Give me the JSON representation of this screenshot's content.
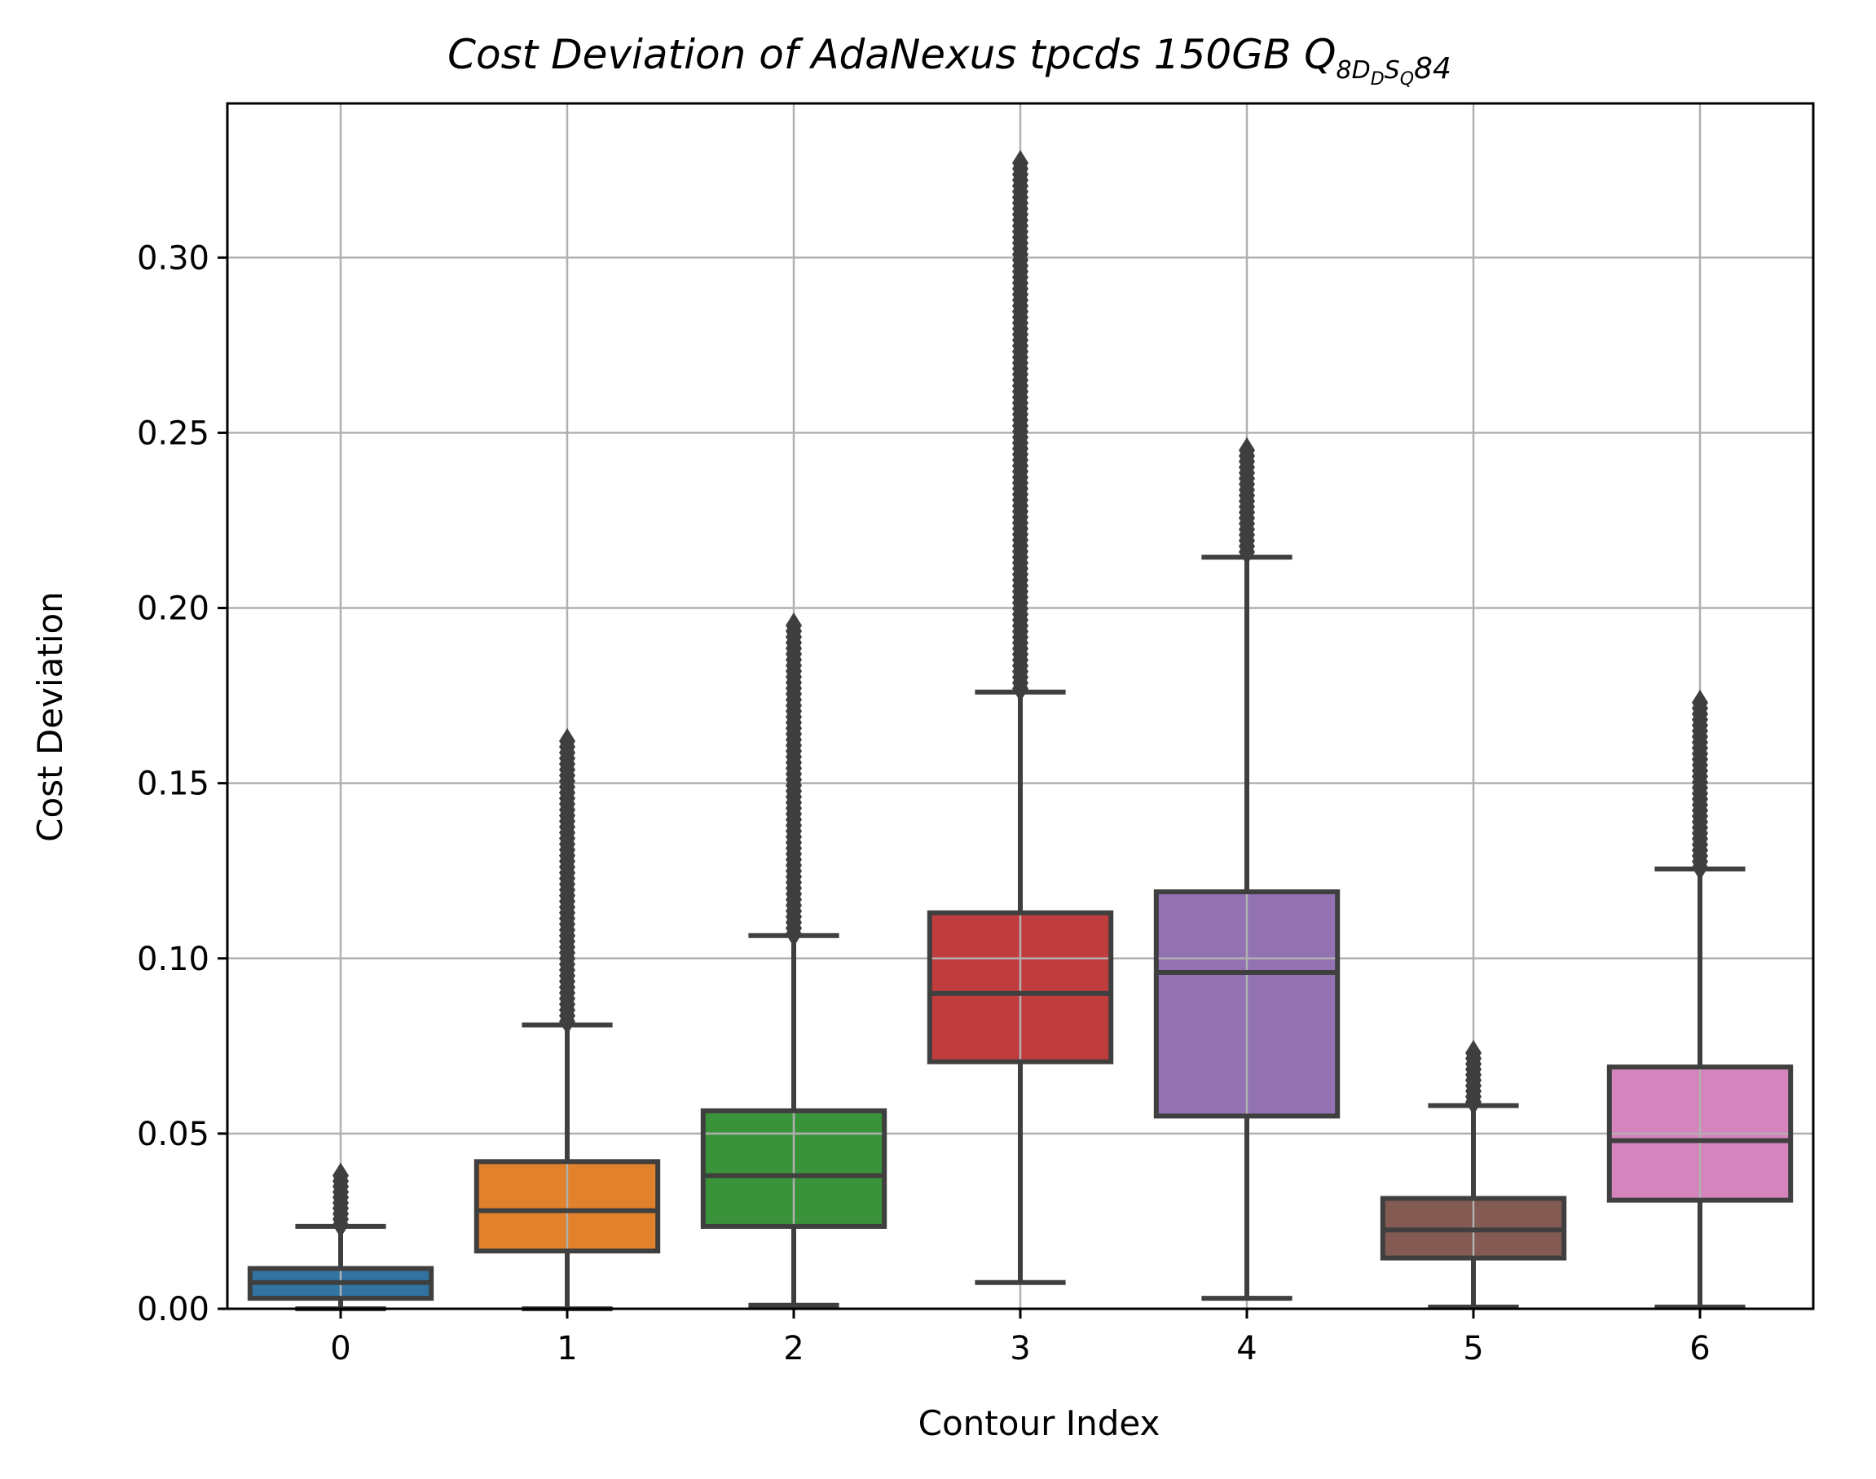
{
  "chart_data": {
    "type": "box",
    "title": "Cost Deviation of AdaNexus tpcds  150GB  Q",
    "title_subscript": "8D",
    "title_subscript_2": "D",
    "title_subscript_3": "S",
    "title_subscript_4": "Q",
    "title_suffix": "84",
    "xlabel": "Contour Index",
    "ylabel": "Cost Deviation",
    "categories": [
      "0",
      "1",
      "2",
      "3",
      "4",
      "5",
      "6"
    ],
    "ylim": [
      0,
      0.344
    ],
    "yticks": [
      0.0,
      0.05,
      0.1,
      0.15,
      0.2,
      0.25,
      0.3
    ],
    "ytick_labels": [
      "0.00",
      "0.05",
      "0.10",
      "0.15",
      "0.20",
      "0.25",
      "0.30"
    ],
    "grid": true,
    "boxes": [
      {
        "category": "0",
        "color": "#3274a1",
        "whisker_low": 0.0,
        "q1": 0.003,
        "median": 0.0075,
        "q3": 0.0115,
        "whisker_high": 0.0235,
        "outlier_range": [
          0.024,
          0.038
        ]
      },
      {
        "category": "1",
        "color": "#e1812c",
        "whisker_low": 0.0,
        "q1": 0.0165,
        "median": 0.028,
        "q3": 0.042,
        "whisker_high": 0.081,
        "outlier_range": [
          0.082,
          0.162
        ]
      },
      {
        "category": "2",
        "color": "#3a923a",
        "whisker_low": 0.001,
        "q1": 0.0235,
        "median": 0.038,
        "q3": 0.0565,
        "whisker_high": 0.1065,
        "outlier_range": [
          0.107,
          0.195
        ]
      },
      {
        "category": "3",
        "color": "#c03d3e",
        "whisker_low": 0.0075,
        "q1": 0.0705,
        "median": 0.09,
        "q3": 0.113,
        "whisker_high": 0.176,
        "outlier_range": [
          0.177,
          0.327
        ]
      },
      {
        "category": "4",
        "color": "#9372b2",
        "whisker_low": 0.003,
        "q1": 0.055,
        "median": 0.096,
        "q3": 0.119,
        "whisker_high": 0.2145,
        "outlier_range": [
          0.216,
          0.245
        ]
      },
      {
        "category": "5",
        "color": "#845b53",
        "whisker_low": 0.0005,
        "q1": 0.0145,
        "median": 0.0225,
        "q3": 0.0315,
        "whisker_high": 0.058,
        "outlier_range": [
          0.059,
          0.073
        ]
      },
      {
        "category": "6",
        "color": "#d684bd",
        "whisker_low": 0.0005,
        "q1": 0.031,
        "median": 0.048,
        "q3": 0.069,
        "whisker_high": 0.1255,
        "outlier_range": [
          0.126,
          0.173
        ]
      }
    ]
  }
}
